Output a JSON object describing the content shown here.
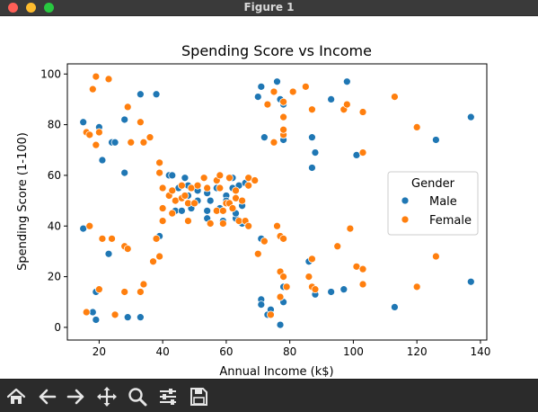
{
  "window": {
    "title": "Figure 1"
  },
  "colors": {
    "male": "#1f77b4",
    "female": "#ff7f0e"
  },
  "toolbar": {
    "icons": [
      "home-icon",
      "back-icon",
      "forward-icon",
      "pan-icon",
      "zoom-icon",
      "configure-subplots-icon",
      "save-icon"
    ]
  },
  "chart_data": {
    "type": "scatter",
    "title": "Spending Score vs Income",
    "xlabel": "Annual Income (k$)",
    "ylabel": "Spending Score (1-100)",
    "xlim": [
      10,
      142
    ],
    "ylim": [
      -5,
      104
    ],
    "xticks": [
      20,
      40,
      60,
      80,
      100,
      120,
      140
    ],
    "yticks": [
      0,
      20,
      40,
      60,
      80,
      100
    ],
    "grid": false,
    "legend": {
      "title": "Gender",
      "position": "center-right"
    },
    "series": [
      {
        "name": "Male",
        "color": "#1f77b4",
        "points": [
          [
            15,
            81
          ],
          [
            15,
            39
          ],
          [
            18,
            6
          ],
          [
            19,
            3
          ],
          [
            19,
            14
          ],
          [
            20,
            79
          ],
          [
            20,
            77
          ],
          [
            21,
            66
          ],
          [
            23,
            29
          ],
          [
            24,
            73
          ],
          [
            25,
            73
          ],
          [
            28,
            82
          ],
          [
            28,
            61
          ],
          [
            29,
            4
          ],
          [
            33,
            92
          ],
          [
            33,
            4
          ],
          [
            38,
            92
          ],
          [
            39,
            36
          ],
          [
            42,
            60
          ],
          [
            43,
            60
          ],
          [
            44,
            46
          ],
          [
            45,
            55
          ],
          [
            46,
            46
          ],
          [
            47,
            59
          ],
          [
            48,
            56
          ],
          [
            48,
            52
          ],
          [
            49,
            47
          ],
          [
            50,
            55
          ],
          [
            51,
            50
          ],
          [
            51,
            54
          ],
          [
            54,
            53
          ],
          [
            54,
            46
          ],
          [
            54,
            43
          ],
          [
            55,
            50
          ],
          [
            57,
            55
          ],
          [
            58,
            47
          ],
          [
            59,
            42
          ],
          [
            60,
            52
          ],
          [
            60,
            50
          ],
          [
            62,
            59
          ],
          [
            62,
            55
          ],
          [
            63,
            43
          ],
          [
            63,
            45
          ],
          [
            64,
            56
          ],
          [
            65,
            48
          ],
          [
            65,
            41
          ],
          [
            66,
            57
          ],
          [
            70,
            91
          ],
          [
            71,
            95
          ],
          [
            71,
            11
          ],
          [
            71,
            9
          ],
          [
            71,
            35
          ],
          [
            72,
            75
          ],
          [
            73,
            5
          ],
          [
            74,
            7
          ],
          [
            76,
            97
          ],
          [
            77,
            1
          ],
          [
            77,
            90
          ],
          [
            78,
            10
          ],
          [
            78,
            88
          ],
          [
            78,
            74
          ],
          [
            78,
            16
          ],
          [
            86,
            26
          ],
          [
            87,
            75
          ],
          [
            87,
            63
          ],
          [
            88,
            69
          ],
          [
            88,
            13
          ],
          [
            93,
            90
          ],
          [
            93,
            14
          ],
          [
            97,
            15
          ],
          [
            98,
            97
          ],
          [
            101,
            68
          ],
          [
            113,
            8
          ],
          [
            126,
            74
          ],
          [
            137,
            83
          ],
          [
            137,
            18
          ]
        ]
      },
      {
        "name": "Female",
        "color": "#ff7f0e",
        "points": [
          [
            16,
            77
          ],
          [
            17,
            40
          ],
          [
            16,
            6
          ],
          [
            17,
            76
          ],
          [
            18,
            94
          ],
          [
            19,
            72
          ],
          [
            19,
            99
          ],
          [
            20,
            15
          ],
          [
            20,
            77
          ],
          [
            21,
            35
          ],
          [
            23,
            98
          ],
          [
            24,
            35
          ],
          [
            25,
            5
          ],
          [
            28,
            14
          ],
          [
            28,
            32
          ],
          [
            29,
            87
          ],
          [
            29,
            31
          ],
          [
            30,
            73
          ],
          [
            33,
            14
          ],
          [
            33,
            81
          ],
          [
            34,
            17
          ],
          [
            34,
            73
          ],
          [
            36,
            75
          ],
          [
            37,
            26
          ],
          [
            38,
            35
          ],
          [
            39,
            28
          ],
          [
            39,
            65
          ],
          [
            39,
            61
          ],
          [
            40,
            55
          ],
          [
            40,
            47
          ],
          [
            40,
            42
          ],
          [
            42,
            52
          ],
          [
            43,
            54
          ],
          [
            43,
            45
          ],
          [
            44,
            50
          ],
          [
            46,
            51
          ],
          [
            46,
            56
          ],
          [
            47,
            52
          ],
          [
            48,
            42
          ],
          [
            48,
            49
          ],
          [
            49,
            55
          ],
          [
            50,
            49
          ],
          [
            51,
            56
          ],
          [
            53,
            59
          ],
          [
            54,
            55
          ],
          [
            55,
            41
          ],
          [
            57,
            58
          ],
          [
            57,
            46
          ],
          [
            58,
            60
          ],
          [
            58,
            55
          ],
          [
            59,
            41
          ],
          [
            59,
            46
          ],
          [
            60,
            49
          ],
          [
            61,
            49
          ],
          [
            61,
            59
          ],
          [
            62,
            47
          ],
          [
            63,
            54
          ],
          [
            63,
            51
          ],
          [
            64,
            42
          ],
          [
            65,
            50
          ],
          [
            66,
            42
          ],
          [
            67,
            59
          ],
          [
            67,
            56
          ],
          [
            67,
            40
          ],
          [
            69,
            58
          ],
          [
            70,
            29
          ],
          [
            72,
            34
          ],
          [
            73,
            88
          ],
          [
            74,
            5
          ],
          [
            75,
            73
          ],
          [
            75,
            93
          ],
          [
            76,
            40
          ],
          [
            77,
            12
          ],
          [
            77,
            36
          ],
          [
            77,
            22
          ],
          [
            78,
            20
          ],
          [
            78,
            76
          ],
          [
            78,
            78
          ],
          [
            78,
            89
          ],
          [
            78,
            83
          ],
          [
            78,
            35
          ],
          [
            79,
            16
          ],
          [
            81,
            93
          ],
          [
            85,
            95
          ],
          [
            86,
            20
          ],
          [
            87,
            27
          ],
          [
            87,
            16
          ],
          [
            87,
            86
          ],
          [
            88,
            15
          ],
          [
            95,
            32
          ],
          [
            97,
            86
          ],
          [
            98,
            88
          ],
          [
            99,
            39
          ],
          [
            101,
            24
          ],
          [
            103,
            23
          ],
          [
            103,
            17
          ],
          [
            103,
            85
          ],
          [
            103,
            69
          ],
          [
            113,
            91
          ],
          [
            120,
            16
          ],
          [
            120,
            79
          ],
          [
            126,
            28
          ]
        ]
      }
    ]
  }
}
